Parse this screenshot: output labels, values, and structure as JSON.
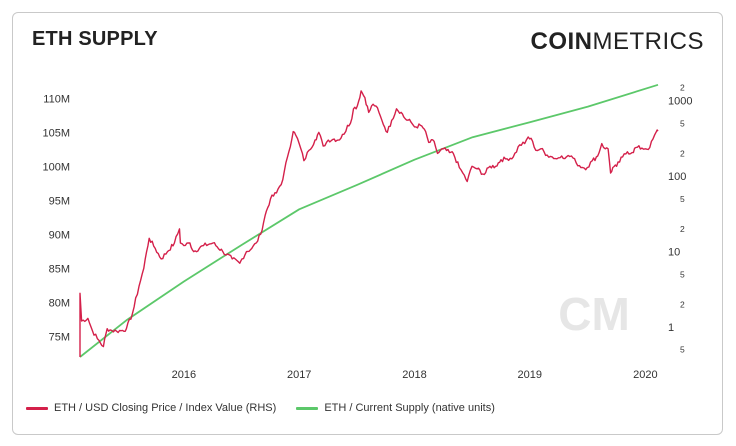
{
  "title": "ETH SUPPLY",
  "logo": {
    "bold": "COIN",
    "light": "METRICS"
  },
  "colors": {
    "price": "#d4204a",
    "supply": "#5cc86a",
    "axis_text": "#333333",
    "watermark": "#e6e6e6"
  },
  "chart_data": {
    "type": "line",
    "title": "ETH SUPPLY",
    "grid": false,
    "legend_position": "bottom-left",
    "x_ticks": [
      "2016",
      "2017",
      "2018",
      "2019",
      "2020"
    ],
    "x_range": [
      "2015-08-07",
      "2020-08-10"
    ],
    "left_axis": {
      "ticks": [
        "75M",
        "80M",
        "85M",
        "90M",
        "95M",
        "100M",
        "105M",
        "110M"
      ],
      "range": [
        72000000,
        113000000
      ]
    },
    "right_axis": {
      "scale": "log",
      "major_ticks": [
        "1",
        "10",
        "100",
        "1000"
      ],
      "minor_ticks": [
        "5",
        "2",
        "5",
        "2",
        "5",
        "2",
        "5",
        "2",
        "5"
      ],
      "range": [
        0.4,
        2000
      ]
    },
    "series": [
      {
        "name": "ETH / USD Closing Price / Index Value (RHS)",
        "axis": "right",
        "color": "#d4204a",
        "points": [
          [
            "2015-08-07",
            2.8
          ],
          [
            "2015-08-12",
            1.2
          ],
          [
            "2015-09-01",
            1.3
          ],
          [
            "2015-09-15",
            0.9
          ],
          [
            "2015-10-01",
            0.7
          ],
          [
            "2015-10-20",
            0.55
          ],
          [
            "2015-11-01",
            0.95
          ],
          [
            "2015-11-15",
            0.9
          ],
          [
            "2015-12-01",
            0.88
          ],
          [
            "2015-12-20",
            0.9
          ],
          [
            "2016-01-01",
            0.95
          ],
          [
            "2016-01-20",
            1.5
          ],
          [
            "2016-02-10",
            3.5
          ],
          [
            "2016-02-25",
            6
          ],
          [
            "2016-03-05",
            10
          ],
          [
            "2016-03-13",
            15
          ],
          [
            "2016-04-01",
            11
          ],
          [
            "2016-04-20",
            8
          ],
          [
            "2016-05-10",
            10
          ],
          [
            "2016-06-01",
            13
          ],
          [
            "2016-06-17",
            20
          ],
          [
            "2016-06-20",
            13
          ],
          [
            "2016-07-01",
            12
          ],
          [
            "2016-07-20",
            13
          ],
          [
            "2016-08-01",
            10
          ],
          [
            "2016-09-01",
            12
          ],
          [
            "2016-10-01",
            13
          ],
          [
            "2016-11-01",
            10
          ],
          [
            "2016-12-01",
            8
          ],
          [
            "2016-12-25",
            7
          ],
          [
            "2017-01-01",
            8
          ],
          [
            "2017-01-15",
            10
          ],
          [
            "2017-02-01",
            11
          ],
          [
            "2017-02-15",
            13
          ],
          [
            "2017-03-01",
            17
          ],
          [
            "2017-03-15",
            30
          ],
          [
            "2017-04-01",
            50
          ],
          [
            "2017-04-20",
            60
          ],
          [
            "2017-05-10",
            90
          ],
          [
            "2017-05-25",
            180
          ],
          [
            "2017-06-12",
            390
          ],
          [
            "2017-06-20",
            350
          ],
          [
            "2017-07-01",
            270
          ],
          [
            "2017-07-16",
            160
          ],
          [
            "2017-08-01",
            220
          ],
          [
            "2017-08-20",
            300
          ],
          [
            "2017-09-01",
            380
          ],
          [
            "2017-09-15",
            250
          ],
          [
            "2017-10-01",
            300
          ],
          [
            "2017-10-20",
            310
          ],
          [
            "2017-11-01",
            300
          ],
          [
            "2017-11-20",
            360
          ],
          [
            "2017-12-01",
            470
          ],
          [
            "2017-12-10",
            500
          ],
          [
            "2017-12-20",
            780
          ],
          [
            "2018-01-01",
            850
          ],
          [
            "2018-01-13",
            1350
          ],
          [
            "2018-01-25",
            1100
          ],
          [
            "2018-02-06",
            700
          ],
          [
            "2018-02-20",
            900
          ],
          [
            "2018-03-01",
            850
          ],
          [
            "2018-03-20",
            550
          ],
          [
            "2018-04-06",
            380
          ],
          [
            "2018-04-20",
            550
          ],
          [
            "2018-05-05",
            780
          ],
          [
            "2018-05-20",
            700
          ],
          [
            "2018-06-01",
            580
          ],
          [
            "2018-06-20",
            520
          ],
          [
            "2018-07-01",
            450
          ],
          [
            "2018-07-20",
            470
          ],
          [
            "2018-08-01",
            420
          ],
          [
            "2018-08-15",
            280
          ],
          [
            "2018-09-01",
            290
          ],
          [
            "2018-09-12",
            200
          ],
          [
            "2018-10-01",
            230
          ],
          [
            "2018-10-20",
            205
          ],
          [
            "2018-11-01",
            200
          ],
          [
            "2018-11-20",
            130
          ],
          [
            "2018-12-01",
            110
          ],
          [
            "2018-12-15",
            85
          ],
          [
            "2018-12-30",
            135
          ],
          [
            "2019-01-15",
            125
          ],
          [
            "2019-02-07",
            105
          ],
          [
            "2019-02-25",
            135
          ],
          [
            "2019-03-15",
            135
          ],
          [
            "2019-04-01",
            165
          ],
          [
            "2019-04-20",
            170
          ],
          [
            "2019-05-10",
            180
          ],
          [
            "2019-05-30",
            260
          ],
          [
            "2019-06-15",
            270
          ],
          [
            "2019-06-26",
            330
          ],
          [
            "2019-07-10",
            290
          ],
          [
            "2019-07-20",
            220
          ],
          [
            "2019-08-05",
            230
          ],
          [
            "2019-08-25",
            190
          ],
          [
            "2019-09-10",
            180
          ],
          [
            "2019-09-25",
            170
          ],
          [
            "2019-10-10",
            185
          ],
          [
            "2019-10-25",
            180
          ],
          [
            "2019-11-10",
            185
          ],
          [
            "2019-11-25",
            150
          ],
          [
            "2019-12-15",
            130
          ],
          [
            "2019-12-30",
            130
          ],
          [
            "2020-01-15",
            160
          ],
          [
            "2020-02-01",
            185
          ],
          [
            "2020-02-14",
            270
          ],
          [
            "2020-02-25",
            230
          ],
          [
            "2020-03-05",
            230
          ],
          [
            "2020-03-13",
            110
          ],
          [
            "2020-03-20",
            130
          ],
          [
            "2020-04-01",
            135
          ],
          [
            "2020-04-20",
            180
          ],
          [
            "2020-05-05",
            210
          ],
          [
            "2020-05-20",
            205
          ],
          [
            "2020-06-01",
            240
          ],
          [
            "2020-06-20",
            235
          ],
          [
            "2020-07-01",
            230
          ],
          [
            "2020-07-15",
            240
          ],
          [
            "2020-07-25",
            310
          ],
          [
            "2020-08-05",
            390
          ],
          [
            "2020-08-10",
            395
          ]
        ]
      },
      {
        "name": "ETH / Current Supply (native units)",
        "axis": "left",
        "color": "#5cc86a",
        "points": [
          [
            "2015-08-07",
            72000000
          ],
          [
            "2016-01-01",
            77400000
          ],
          [
            "2016-07-01",
            83100000
          ],
          [
            "2017-01-01",
            88500000
          ],
          [
            "2017-07-01",
            93700000
          ],
          [
            "2018-01-01",
            97300000
          ],
          [
            "2018-07-01",
            101000000
          ],
          [
            "2019-01-01",
            104300000
          ],
          [
            "2019-07-01",
            106500000
          ],
          [
            "2020-01-01",
            108800000
          ],
          [
            "2020-08-10",
            112000000
          ]
        ]
      }
    ],
    "watermark": "CM"
  }
}
